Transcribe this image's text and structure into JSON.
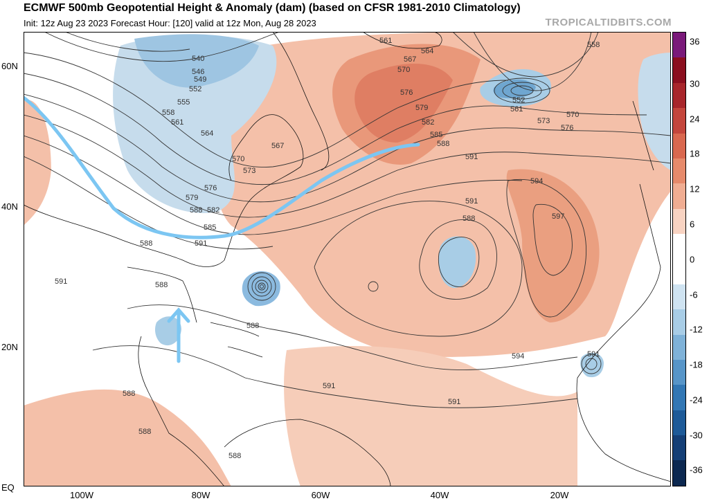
{
  "header": {
    "title": "ECMWF 500mb Geopotential Height & Anomaly (dam) (based on CFSR 1981-2010 Climatology)",
    "subtitle": "Init: 12z Aug 23 2023   Forecast Hour: [120]   valid at 12z Mon, Aug 28 2023",
    "brand": "TROPICALTIDBITS.COM"
  },
  "axes": {
    "lat_labels": [
      "60N",
      "40N",
      "20N",
      "EQ"
    ],
    "lon_labels": [
      "100W",
      "80W",
      "60W",
      "40W",
      "20W"
    ]
  },
  "colorbar": {
    "labels": [
      "36",
      "30",
      "24",
      "18",
      "12",
      "6",
      "0",
      "-6",
      "-12",
      "-18",
      "-24",
      "-30",
      "-36"
    ],
    "colors": [
      "#7a1a7a",
      "#8b0f1f",
      "#a8262b",
      "#c4463c",
      "#d9684f",
      "#e68a6b",
      "#f0ad92",
      "#f8d3c2",
      "#ffffff",
      "#ffffff",
      "#cfe3f1",
      "#a8cde6",
      "#7fb2d8",
      "#5795c8",
      "#3277b4",
      "#1d5a98",
      "#143f76",
      "#0c2850"
    ]
  },
  "contour_labels": [
    "561",
    "564",
    "567",
    "570",
    "576",
    "579",
    "582",
    "585",
    "588",
    "591",
    "594",
    "597",
    "540",
    "546",
    "549",
    "552",
    "555",
    "558",
    "561",
    "564",
    "567",
    "570",
    "573",
    "576",
    "579",
    "582",
    "585",
    "588",
    "591",
    "552",
    "561",
    "570",
    "573",
    "576",
    "558",
    "588",
    "591",
    "588",
    "588",
    "588",
    "591",
    "594",
    "591",
    "591",
    "588",
    "588",
    "591",
    "588"
  ]
}
